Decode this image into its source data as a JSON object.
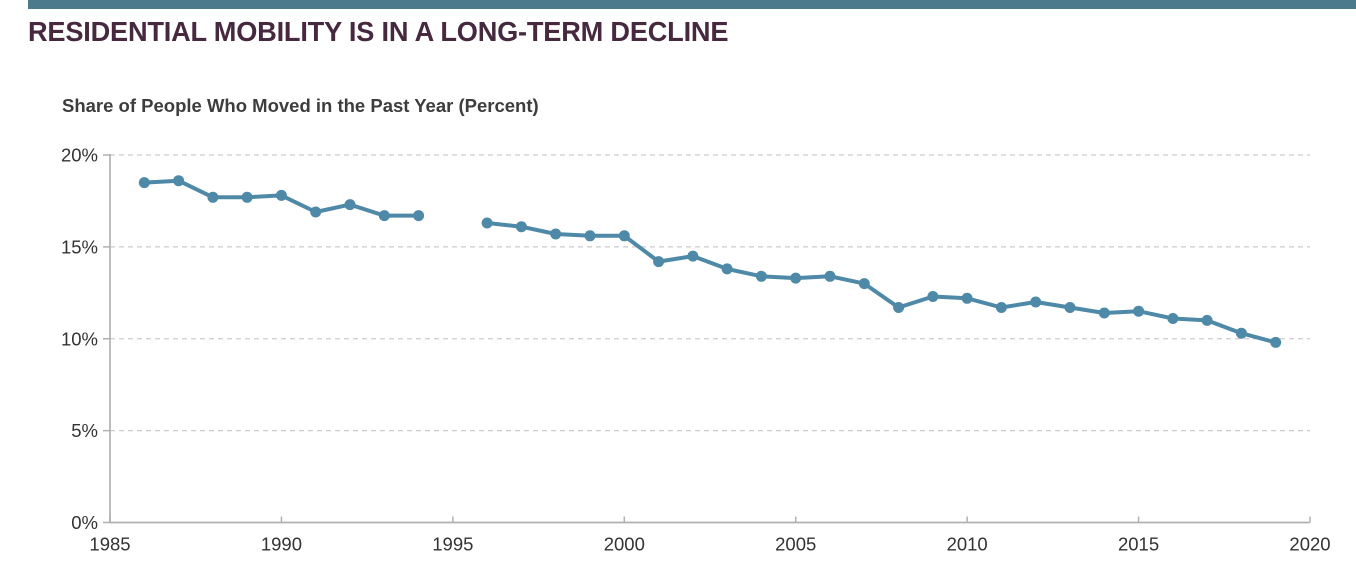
{
  "header": {
    "title": "RESIDENTIAL MOBILITY IS IN A LONG-TERM DECLINE",
    "title_color": "#46283f",
    "accent_bar_color": "#4a7a8c"
  },
  "chart_data": {
    "type": "line",
    "title": "Share of People Who Moved in the Past Year (Percent)",
    "series": [
      {
        "name": "Share of people who moved in the past year",
        "x": [
          1986,
          1987,
          1988,
          1989,
          1990,
          1991,
          1992,
          1993,
          1994,
          1995,
          1996,
          1997,
          1998,
          1999,
          2000,
          2001,
          2002,
          2003,
          2004,
          2005,
          2006,
          2007,
          2008,
          2009,
          2010,
          2011,
          2012,
          2013,
          2014,
          2015,
          2016,
          2017,
          2018,
          2019
        ],
        "values": [
          18.5,
          18.6,
          17.7,
          17.7,
          17.8,
          16.9,
          17.3,
          16.7,
          16.7,
          null,
          16.3,
          16.1,
          15.7,
          15.6,
          15.6,
          14.2,
          14.5,
          13.8,
          13.4,
          13.3,
          13.4,
          13.0,
          11.7,
          12.3,
          12.2,
          11.7,
          12.0,
          11.7,
          11.4,
          11.5,
          11.1,
          11.0,
          10.3,
          9.8
        ]
      }
    ],
    "xlim": [
      1985,
      2020
    ],
    "ylim": [
      0,
      20
    ],
    "x_ticks": [
      1985,
      1990,
      1995,
      2000,
      2005,
      2010,
      2015,
      2020
    ],
    "y_ticks": [
      0,
      5,
      10,
      15,
      20
    ],
    "y_tick_suffix": "%",
    "grid": "horizontal-dashed",
    "legend_position": "none",
    "line_color": "#4e89a8",
    "marker": "circle",
    "missing_years": [
      1995
    ],
    "gridline_color": "#cccccc",
    "axis_color": "#b0b0b0",
    "tick_label_color": "#333333"
  }
}
